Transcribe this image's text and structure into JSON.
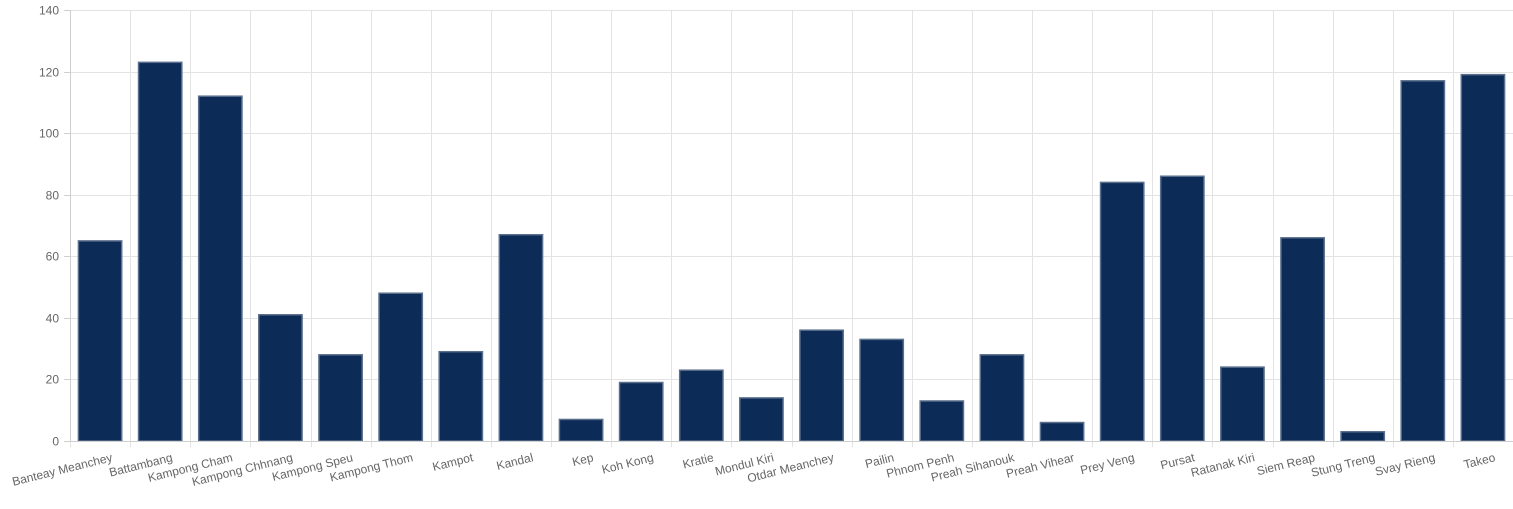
{
  "chart_data": {
    "type": "bar",
    "title": "",
    "xlabel": "",
    "ylabel": "",
    "ylim": [
      0,
      140
    ],
    "yticks": [
      0,
      20,
      40,
      60,
      80,
      100,
      120,
      140
    ],
    "grid": true,
    "legend": "none",
    "categories": [
      "Banteay Meanchey",
      "Battambang",
      "Kampong Cham",
      "Kampong Chhnang",
      "Kampong Speu",
      "Kampong Thom",
      "Kampot",
      "Kandal",
      "Kep",
      "Koh Kong",
      "Kratie",
      "Mondul Kiri",
      "Otdar Meanchey",
      "Pailin",
      "Phnom Penh",
      "Preah Sihanouk",
      "Preah Vihear",
      "Prey Veng",
      "Pursat",
      "Ratanak Kiri",
      "Siem Reap",
      "Stung Treng",
      "Svay Rieng",
      "Takeo"
    ],
    "values": [
      65,
      123,
      112,
      41,
      28,
      48,
      29,
      67,
      7,
      19,
      23,
      14,
      36,
      33,
      13,
      28,
      6,
      84,
      86,
      24,
      66,
      3,
      117,
      119
    ],
    "bar_color": "#0d2b57",
    "bar_border_color": "#5a6f8c"
  }
}
